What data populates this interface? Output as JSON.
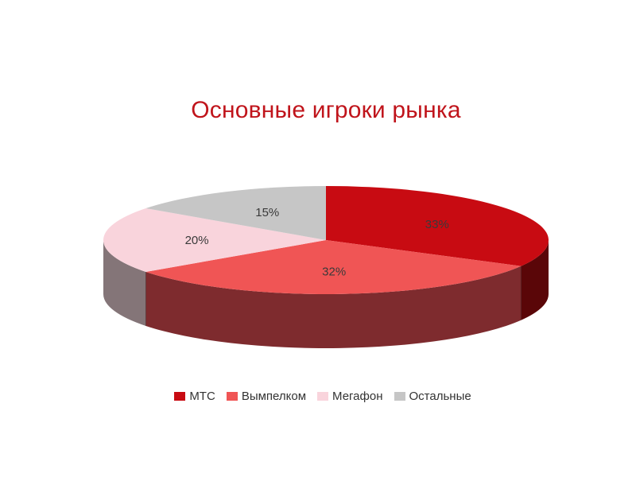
{
  "chart_data": {
    "type": "pie",
    "title": "Основные игроки рынка",
    "series": [
      {
        "name": "МТС",
        "value": 33,
        "label": "33%",
        "color": "#c80b12",
        "side_color": "#5a0608"
      },
      {
        "name": "Вымпелком",
        "value": 32,
        "label": "32%",
        "color": "#f05555",
        "side_color": "#7e2b2e"
      },
      {
        "name": "Мегафон",
        "value": 20,
        "label": "20%",
        "color": "#f9d4dc",
        "side_color": "#847578"
      },
      {
        "name": "Остальные",
        "value": 15,
        "label": "15%",
        "color": "#c6c6c6",
        "side_color": "#6e6e6e"
      }
    ],
    "legend_position": "bottom"
  }
}
